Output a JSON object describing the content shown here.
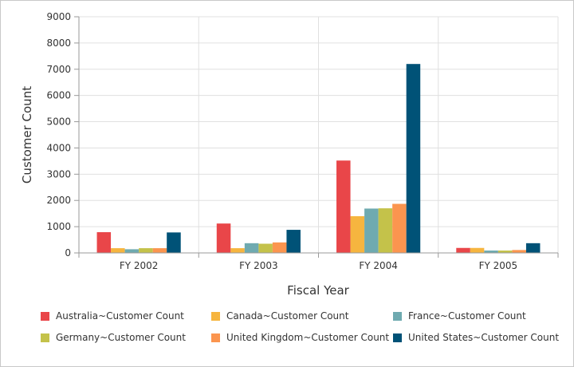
{
  "chart_data": {
    "type": "bar",
    "title": "",
    "xlabel": "Fiscal Year",
    "ylabel": "Customer Count",
    "ylim": [
      0,
      9000
    ],
    "yticks": [
      0,
      1000,
      2000,
      3000,
      4000,
      5000,
      6000,
      7000,
      8000,
      9000
    ],
    "grid": true,
    "legend_position": "bottom",
    "categories": [
      "FY 2002",
      "FY 2003",
      "FY 2004",
      "FY 2005"
    ],
    "series": [
      {
        "name": "Australia~Customer Count",
        "color": "#E94649",
        "values": [
          790,
          1120,
          3520,
          190
        ]
      },
      {
        "name": "Canada~Customer Count",
        "color": "#F6B53F",
        "values": [
          180,
          180,
          1400,
          190
        ]
      },
      {
        "name": "France~Customer Count",
        "color": "#6FAAB0",
        "values": [
          140,
          370,
          1690,
          90
        ]
      },
      {
        "name": "Germany~Customer Count",
        "color": "#C4C24A",
        "values": [
          180,
          350,
          1700,
          90
        ]
      },
      {
        "name": "United Kingdom~Customer Count",
        "color": "#FB954F",
        "values": [
          180,
          400,
          1870,
          110
        ]
      },
      {
        "name": "United States~Customer Count",
        "color": "#005277",
        "values": [
          780,
          880,
          7200,
          370
        ]
      }
    ]
  }
}
